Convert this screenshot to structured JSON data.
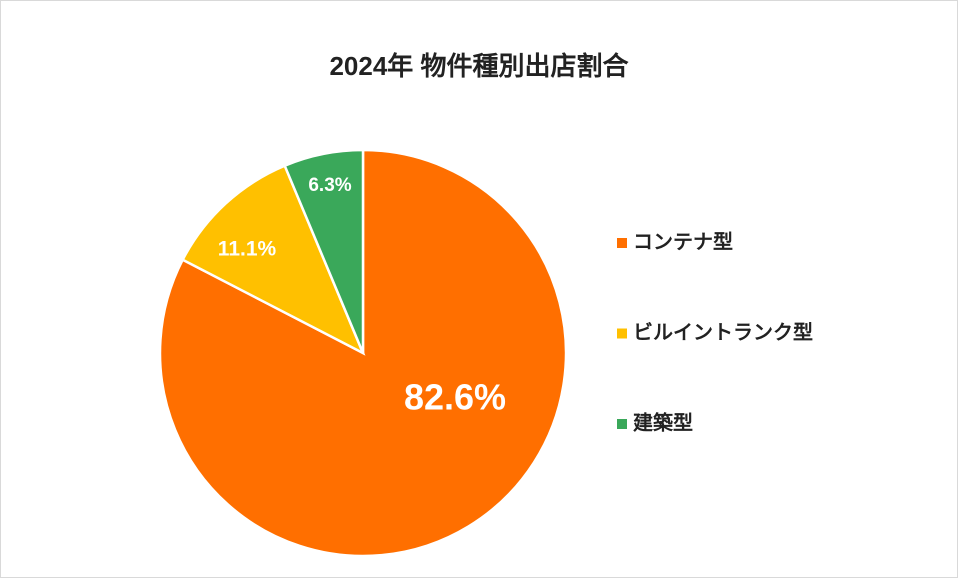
{
  "chart_data": {
    "type": "pie",
    "title": "2024年  物件種別出店割合",
    "categories": [
      "コンテナ型",
      "ビルイントランク型",
      "建築型"
    ],
    "values": [
      82.6,
      11.1,
      6.3
    ],
    "value_labels": [
      "82.6%",
      "11.1%",
      "6.3%"
    ],
    "colors": [
      "#ff6f00",
      "#ffc000",
      "#3aa85a"
    ],
    "legend": "right"
  }
}
